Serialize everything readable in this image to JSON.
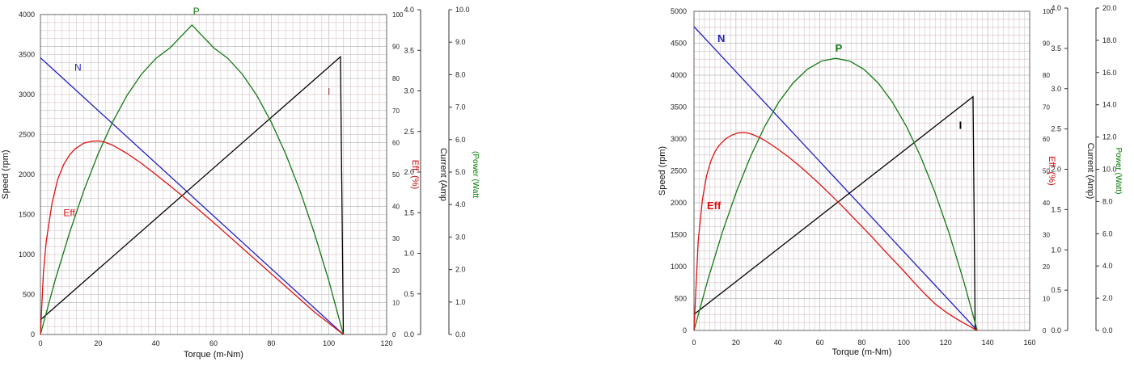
{
  "chart_data": [
    {
      "type": "line",
      "xlabel": "Torque (m-Nm)",
      "x_ticks": [
        "0",
        "20",
        "40",
        "60",
        "80",
        "100",
        "120"
      ],
      "xlim": [
        0,
        120
      ],
      "grid": true,
      "axes": [
        {
          "label": "Speed (rpm)",
          "range": [
            0,
            4000
          ],
          "ticks": [
            "0",
            "500",
            "1000",
            "1500",
            "2000",
            "2500",
            "3000",
            "3500",
            "4000"
          ],
          "color": "#000000"
        },
        {
          "label": "Eff. (%)",
          "range": [
            0,
            100
          ],
          "ticks": [
            "0",
            "10",
            "20",
            "30",
            "40",
            "50",
            "60",
            "70",
            "80",
            "90",
            "100"
          ],
          "color": "#cc0000"
        },
        {
          "label": "Current (Amp",
          "range": [
            0,
            4
          ],
          "ticks": [
            "0.0",
            "0.5",
            "1.0",
            "1.5",
            "2.0",
            "2.5",
            "3.0",
            "3.5",
            "4.0"
          ],
          "color": "#000000"
        },
        {
          "label": "(Power (Watt",
          "range": [
            0,
            10
          ],
          "ticks": [
            "0.0",
            "1.0",
            "2.0",
            "3.0",
            "4.0",
            "5.0",
            "6.0",
            "7.0",
            "8.0",
            "9.0",
            "10.0"
          ],
          "color": "#007a00"
        }
      ],
      "series": [
        {
          "name": "N",
          "color": "#1f1fbf",
          "axis": 0,
          "x": [
            0,
            105
          ],
          "y": [
            3460,
            0
          ]
        },
        {
          "name": "I",
          "color": "#000000",
          "axis": 2,
          "x": [
            0,
            104,
            105
          ],
          "y": [
            0.18,
            3.42,
            0
          ]
        },
        {
          "name": "P",
          "color": "#117a11",
          "axis": 3,
          "x": [
            0,
            5,
            10,
            15,
            20,
            25,
            30,
            35,
            40,
            45,
            52.5,
            60,
            65,
            70,
            75,
            80,
            85,
            90,
            95,
            100,
            105
          ],
          "y": [
            0,
            1.64,
            3.11,
            4.42,
            5.56,
            6.54,
            7.36,
            8.01,
            8.5,
            8.83,
            9.53,
            8.83,
            8.5,
            8.01,
            7.36,
            6.54,
            5.56,
            4.42,
            3.11,
            1.64,
            0
          ]
        },
        {
          "name": "Eff",
          "color": "#dd1111",
          "axis": 1,
          "x": [
            0,
            1,
            2,
            4,
            6,
            8,
            10,
            12,
            15,
            18,
            20,
            22,
            25,
            30,
            35,
            40,
            45,
            50,
            55,
            60,
            65,
            70,
            75,
            80,
            85,
            90,
            95,
            100,
            105
          ],
          "y": [
            0,
            19,
            29,
            41,
            48.5,
            53,
            56,
            58,
            59.8,
            60.4,
            60.5,
            60.2,
            59.2,
            56.6,
            53.5,
            50,
            46.4,
            42.7,
            38.9,
            35,
            31,
            27,
            23,
            19,
            15,
            11,
            7,
            3.5,
            0
          ]
        }
      ],
      "labels": [
        {
          "text": "N",
          "color": "#1f1fbf",
          "x": 13,
          "axis": 0,
          "y": 3300
        },
        {
          "text": "P",
          "color": "#117a11",
          "x": 54,
          "axis": 3,
          "y": 9.85
        },
        {
          "text": "I",
          "color": "#883333",
          "x": 100,
          "axis": 2,
          "y": 2.95
        },
        {
          "text": "Eff",
          "color": "#dd1111",
          "x": 10,
          "axis": 1,
          "y": 37
        }
      ]
    },
    {
      "type": "line",
      "xlabel": "Torque (m-Nm)",
      "x_ticks": [
        "0",
        "20",
        "40",
        "60",
        "80",
        "100",
        "120",
        "140",
        "160"
      ],
      "xlim": [
        0,
        160
      ],
      "grid": true,
      "axes": [
        {
          "label": "Speed (rpm)",
          "range": [
            0,
            5000
          ],
          "ticks": [
            "0",
            "500",
            "1000",
            "1500",
            "2000",
            "2500",
            "3000",
            "3500",
            "4000",
            "4500",
            "5000"
          ],
          "color": "#000000"
        },
        {
          "label": "Eff. (%)",
          "range": [
            0,
            100
          ],
          "ticks": [
            "0",
            "10",
            "20",
            "30",
            "40",
            "50",
            "60",
            "70",
            "80",
            "90",
            "100"
          ],
          "color": "#cc0000"
        },
        {
          "label": "Current (Amp)",
          "range": [
            0,
            4
          ],
          "ticks": [
            "0.0",
            "0.5",
            "1.0",
            "1.5",
            "2.0",
            "2.5",
            "3.0",
            "3.5",
            "4.0"
          ],
          "color": "#000000"
        },
        {
          "label": "Power (Watt)",
          "range": [
            0,
            20
          ],
          "ticks": [
            "0.0",
            "2.0",
            "4.0",
            "6.0",
            "8.0",
            "10.0",
            "12.0",
            "14.0",
            "16.0",
            "18.0",
            "20.0"
          ],
          "color": "#007a00"
        }
      ],
      "series": [
        {
          "name": "N",
          "color": "#1f1fbf",
          "axis": 0,
          "x": [
            0,
            135
          ],
          "y": [
            4760,
            0
          ]
        },
        {
          "name": "I",
          "color": "#000000",
          "axis": 2,
          "x": [
            0,
            133,
            134
          ],
          "y": [
            0.2,
            2.9,
            0
          ]
        },
        {
          "name": "P",
          "color": "#117a11",
          "axis": 3,
          "x": [
            0,
            6.75,
            13.5,
            20.25,
            27,
            33.75,
            40.5,
            47.25,
            54,
            60.75,
            67.5,
            74.25,
            81,
            87.75,
            94.5,
            101.25,
            108,
            114.75,
            121.5,
            128.25,
            135
          ],
          "y": [
            0,
            3.21,
            6.08,
            8.61,
            10.8,
            12.66,
            14.18,
            15.36,
            16.2,
            16.71,
            16.88,
            16.71,
            16.2,
            15.36,
            14.18,
            12.66,
            10.8,
            8.61,
            6.08,
            3.21,
            0
          ]
        },
        {
          "name": "Eff",
          "color": "#dd1111",
          "axis": 1,
          "x": [
            0,
            2,
            4,
            6,
            8,
            10,
            12,
            15,
            18,
            21,
            24,
            26,
            28,
            32,
            36,
            40,
            45,
            50,
            55,
            60,
            65,
            70,
            75,
            80,
            85,
            90,
            95,
            100,
            105,
            110,
            115,
            120,
            125,
            130,
            135
          ],
          "y": [
            0,
            28,
            41,
            48.5,
            53,
            56,
            58,
            60,
            61.2,
            61.9,
            62,
            61.8,
            61.4,
            60.2,
            58.6,
            56.8,
            54.4,
            51.7,
            48.8,
            45.8,
            42.6,
            39.4,
            36,
            32.6,
            29.2,
            25.6,
            22.1,
            18.6,
            15,
            11.5,
            8.3,
            5.8,
            3.7,
            1.8,
            0
          ]
        }
      ],
      "labels": [
        {
          "text": "N",
          "color": "#1f1fbf",
          "x": 13,
          "axis": 0,
          "y": 4520
        },
        {
          "text": "P",
          "color": "#117a11",
          "x": 69,
          "axis": 3,
          "y": 17.3
        },
        {
          "text": "I",
          "color": "#000000",
          "x": 127,
          "axis": 2,
          "y": 2.5
        },
        {
          "text": "Eff",
          "color": "#dd1111",
          "x": 9.5,
          "axis": 1,
          "y": 38
        }
      ]
    }
  ]
}
